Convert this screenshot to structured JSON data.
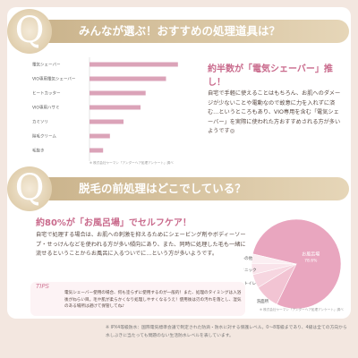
{
  "section1": {
    "q": "Q",
    "title": "みんなが選ぶ！おすすめの処理道具は？",
    "note": "※ 株式会社ヤーマン「アンダーヘア処理アンケート」調べ",
    "headline": "約半数が「電気シェーバー」推し！",
    "body": "自宅で手軽に使えることはもちろん、お肌へのダメージが少ないことや電動なので故意に力を入れずに済む…というところもあり、VIO専用を含む「電気シェーバー」を実際に使われた方おすすめされる方が多いようです◎"
  },
  "section2": {
    "q": "Q",
    "title": "脱毛の前処理はどこでしている？",
    "headline": "約80%が「お風呂場」でセルフケア！",
    "body": "自宅で処理する場合は、お肌への刺激を抑えるためにシェービング剤やボディーソープ・せっけんなどを使われる方が多い傾向にあり、また、同時に処理した毛も一緒に流せるということからお風呂に入るついでに…という方が多いようです。",
    "tips_title": "TIPS",
    "tips": "電気シェーバー使用の場合、何も塗らずに使用するのが一般的！また、処理のタイミングは入浴後がねらい目。毛や肌が柔らかくなり処理しやすくなるうえ！使用後は刃の汚れを落とし、湿気のある場所は避けて保管してね♪",
    "note": "※ 株式会社ヤーマン「アンダーヘア処理アンケート」調べ"
  },
  "footnote": "※ IPX4等級防水：国際電気標準会議で制定された防滴・防水に対する保護レベル。0～8等級まであり、4級は全ての方向から水しぶきに当たっても問題のない生活防水レベルを表しています。",
  "chart_data": [
    {
      "type": "hbar",
      "categories": [
        "電気シェーバー",
        "VIO専用電気シェーバー",
        "ヒートカッター",
        "VIO専用ハサミ",
        "カミソリ",
        "除毛クリーム",
        "毛抜き"
      ],
      "values": [
        52,
        45,
        33,
        30,
        20,
        12,
        8
      ],
      "color": "#dba3b8",
      "xlim": [
        0,
        60
      ]
    },
    {
      "type": "pie",
      "categories": [
        "お風呂場",
        "洗面所",
        "トイレ",
        "クリニック",
        "その他"
      ],
      "values": [
        78.6,
        9,
        5,
        4,
        3.4
      ],
      "value_labels": [
        "78.6%",
        null,
        null,
        null,
        null
      ],
      "colors": [
        "#e9a6bf",
        "#f2c4d3",
        "#f6d6e0",
        "#f9e3ea",
        "#fbeef2"
      ]
    }
  ]
}
